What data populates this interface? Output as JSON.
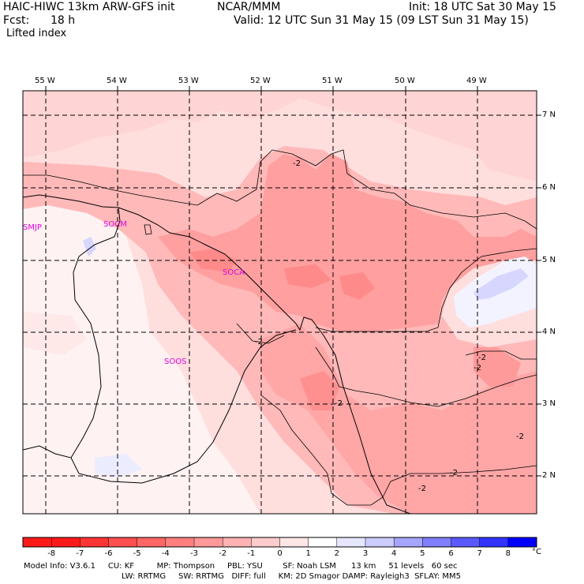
{
  "header": {
    "model": "HAIC-HIWC 13km ARW-GFS init",
    "org": "NCAR/MMM",
    "init": "Init: 18 UTC Sat 30 May 15",
    "fcst_label": "Fcst:",
    "fcst_value": "18 h",
    "valid": "Valid: 12 UTC Sun 31 May 15 (09 LST Sun 31 May 15)",
    "field": "Lifted index"
  },
  "map": {
    "longitudes": [
      "55 W",
      "54 W",
      "53 W",
      "52 W",
      "51 W",
      "50 W",
      "49 W"
    ],
    "latitudes": [
      "7 N",
      "6 N",
      "5 N",
      "4 N",
      "3 N",
      "2 N"
    ],
    "stations": [
      "SMJP",
      "SOCM",
      "SOCA",
      "SOOS"
    ],
    "contour_labels": [
      "-2",
      "-2",
      "-2",
      "-2",
      "-2",
      "-2",
      "-2",
      "-2"
    ]
  },
  "colorbar": {
    "labels": [
      "-8",
      "-7",
      "-6",
      "-5",
      "-4",
      "-3",
      "-2",
      "-1",
      "0",
      "1",
      "2",
      "3",
      "4",
      "5",
      "6",
      "7",
      "8"
    ],
    "unit": "°C",
    "colors": [
      "#ff1a1a",
      "#ff3535",
      "#ff4f4f",
      "#ff6666",
      "#ff7f7f",
      "#ff9999",
      "#ffb2b2",
      "#ffcccc",
      "#ffe6e6",
      "#ffffff",
      "#e6e6ff",
      "#ccccff",
      "#a6a6ff",
      "#8080ff",
      "#5959ff",
      "#3333ff",
      "#0000ff"
    ]
  },
  "footer": {
    "line1": "Model Info: V3.6.1     CU: KF         MP: Thompson     PBL: YSU        SF: Noah LSM      13 km     51 levels   60 sec",
    "line2": "LW: RRTMG     SW: RRTMG   DIFF: full     KM: 2D Smagor DAMP: Rayleigh3  SFLAY: MM5"
  }
}
